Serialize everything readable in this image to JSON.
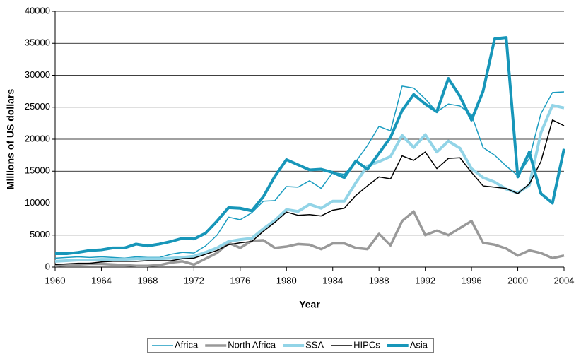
{
  "chart_data": {
    "type": "line",
    "x_label": "Year",
    "y_label": "Millions of US dollars",
    "x": [
      1960,
      1961,
      1962,
      1963,
      1964,
      1965,
      1966,
      1967,
      1968,
      1969,
      1970,
      1971,
      1972,
      1973,
      1974,
      1975,
      1976,
      1977,
      1978,
      1979,
      1980,
      1981,
      1982,
      1983,
      1984,
      1985,
      1986,
      1987,
      1988,
      1989,
      1990,
      1991,
      1992,
      1993,
      1994,
      1995,
      1996,
      1997,
      1998,
      1999,
      2000,
      2001,
      2002,
      2003,
      2004
    ],
    "xlim": [
      1960,
      2004
    ],
    "xticks": [
      1960,
      1964,
      1968,
      1972,
      1976,
      1980,
      1984,
      1988,
      1992,
      1996,
      2000,
      2004
    ],
    "ylim": [
      0,
      40000
    ],
    "yticks": [
      0,
      5000,
      10000,
      15000,
      20000,
      25000,
      30000,
      35000,
      40000
    ],
    "grid": true,
    "legend": "bottom",
    "series": [
      {
        "name": "Africa",
        "color": "#1a9cc0",
        "width": 1.5,
        "values": [
          1400,
          1500,
          1600,
          1500,
          1600,
          1500,
          1400,
          1600,
          1500,
          1500,
          2000,
          2300,
          2200,
          3300,
          5000,
          7800,
          7400,
          8500,
          10300,
          10400,
          12600,
          12500,
          13500,
          12300,
          14800,
          14500,
          16500,
          19000,
          22000,
          21300,
          28300,
          28000,
          26300,
          24300,
          25500,
          25200,
          23800,
          18700,
          17500,
          15800,
          14300,
          17000,
          24000,
          27300,
          27400
        ]
      },
      {
        "name": "North Africa",
        "color": "#999999",
        "width": 3.5,
        "values": [
          200,
          300,
          400,
          500,
          500,
          400,
          300,
          200,
          200,
          300,
          700,
          900,
          400,
          1300,
          2200,
          3800,
          3000,
          4100,
          4200,
          3000,
          3200,
          3600,
          3500,
          2800,
          3700,
          3700,
          3000,
          2800,
          5200,
          3400,
          7200,
          8700,
          5000,
          5700,
          5000,
          6100,
          7200,
          3800,
          3500,
          2900,
          1800,
          2600,
          2200,
          1400,
          1800
        ]
      },
      {
        "name": "SSA",
        "color": "#92d4e7",
        "width": 4,
        "values": [
          900,
          1000,
          1100,
          1100,
          1200,
          1200,
          1200,
          1300,
          1300,
          1300,
          1400,
          1500,
          1700,
          2300,
          3000,
          4000,
          4300,
          4500,
          6000,
          7300,
          9000,
          8700,
          9800,
          9200,
          10300,
          10300,
          13200,
          15800,
          16500,
          17300,
          20600,
          18700,
          20700,
          18000,
          19700,
          18600,
          15400,
          14000,
          13300,
          12200,
          11600,
          12800,
          21000,
          25300,
          24900
        ]
      },
      {
        "name": "HIPCs",
        "color": "#000000",
        "width": 1.5,
        "values": [
          400,
          500,
          600,
          600,
          800,
          900,
          900,
          900,
          1000,
          1000,
          1000,
          1300,
          1400,
          2000,
          2600,
          3500,
          3800,
          4000,
          5600,
          7000,
          8600,
          8100,
          8200,
          8000,
          8900,
          9200,
          11200,
          12700,
          14100,
          13800,
          17400,
          16700,
          18000,
          15400,
          17000,
          17100,
          14800,
          12700,
          12500,
          12300,
          11500,
          13000,
          16500,
          23000,
          22100
        ]
      },
      {
        "name": "Asia",
        "color": "#1796b9",
        "width": 4,
        "values": [
          2100,
          2100,
          2300,
          2600,
          2700,
          3000,
          3000,
          3600,
          3300,
          3600,
          4000,
          4500,
          4400,
          5300,
          7200,
          9300,
          9200,
          8800,
          11000,
          14200,
          16800,
          16000,
          15200,
          15300,
          14800,
          14000,
          16600,
          15300,
          17800,
          20300,
          24500,
          27000,
          25500,
          24300,
          29500,
          26700,
          23000,
          27500,
          35700,
          35900,
          14100,
          18000,
          11500,
          10000,
          18500
        ]
      }
    ]
  }
}
